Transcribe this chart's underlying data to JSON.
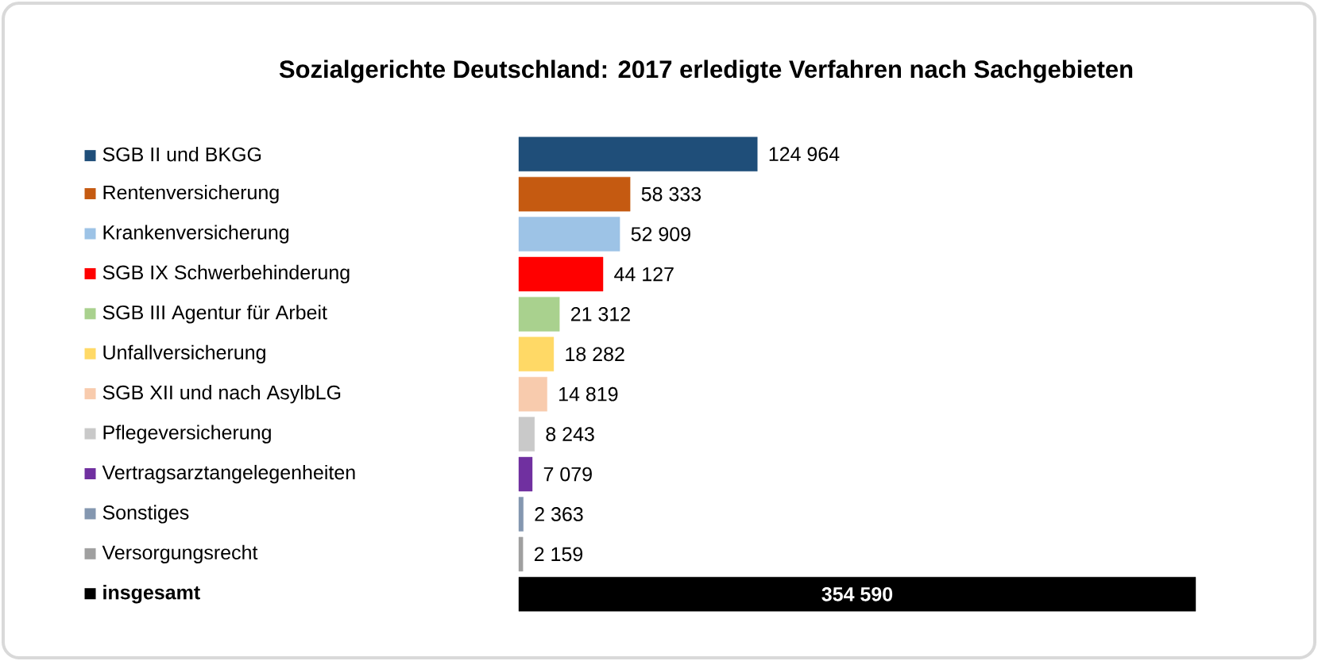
{
  "chart_data": {
    "type": "bar",
    "orientation": "horizontal",
    "title": "Sozialgerichte Deutschland: 2017 erledigte Verfahren nach Sachgebieten",
    "categories": [
      "SGB II und BKGG",
      "Rentenversicherung",
      "Krankenversicherung",
      "SGB IX Schwerbehinderung",
      "SGB III Agentur für Arbeit",
      "Unfallversicherung",
      "SGB XII und nach AsylbLG",
      "Pflegeversicherung",
      "Vertragsarztangelegenheiten",
      "Sonstiges",
      "Versorgungsrecht",
      "insgesamt"
    ],
    "values": [
      124964,
      58333,
      52909,
      44127,
      21312,
      18282,
      14819,
      8243,
      7079,
      2363,
      2159,
      354590
    ],
    "value_labels": [
      "124 964",
      "58 333",
      "52 909",
      "44 127",
      "21 312",
      "18 282",
      "14 819",
      "8 243",
      "7 079",
      "2 363",
      "2 159",
      "354 590"
    ],
    "colors": [
      "#1f4e79",
      "#c55a11",
      "#9dc3e6",
      "#ff0000",
      "#a9d18e",
      "#ffd966",
      "#f8cbad",
      "#c9c9c9",
      "#7030a0",
      "#8497b0",
      "#a0a0a0",
      "#000000"
    ],
    "grid": false
  }
}
